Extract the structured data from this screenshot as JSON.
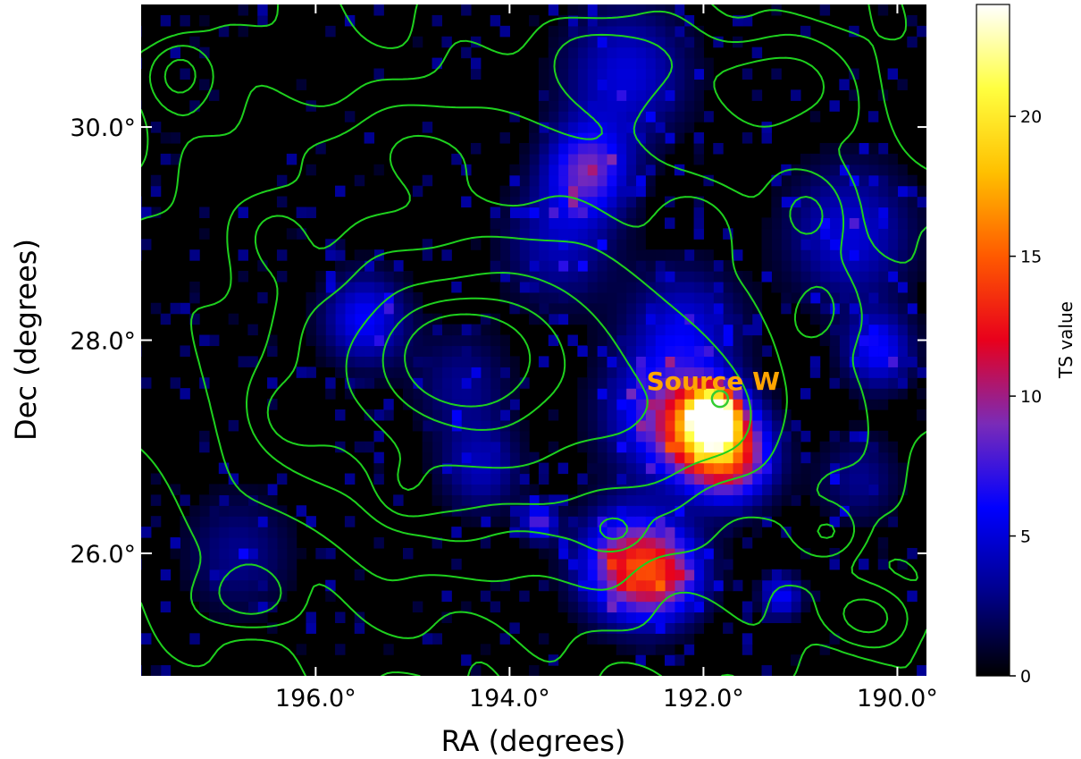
{
  "chart_data": {
    "type": "heatmap",
    "xlabel": "RA (degrees)",
    "ylabel": "Dec (degrees)",
    "xlim": [
      197.8,
      189.7
    ],
    "ylim": [
      24.85,
      31.15
    ],
    "x_ticks": [
      {
        "value": 196.0,
        "label": "196.0°"
      },
      {
        "value": 194.0,
        "label": "194.0°"
      },
      {
        "value": 192.0,
        "label": "192.0°"
      },
      {
        "value": 190.0,
        "label": "190.0°"
      }
    ],
    "y_ticks": [
      {
        "value": 30.0,
        "label": "30.0°"
      },
      {
        "value": 28.0,
        "label": "28.0°"
      },
      {
        "value": 26.0,
        "label": "26.0°"
      }
    ],
    "colorbar": {
      "label": "TS value",
      "range": [
        0,
        24
      ],
      "ticks": [
        {
          "value": 0,
          "label": "0"
        },
        {
          "value": 5,
          "label": "5"
        },
        {
          "value": 10,
          "label": "10"
        },
        {
          "value": 15,
          "label": "15"
        },
        {
          "value": 20,
          "label": "20"
        }
      ],
      "colormap": [
        "#000000",
        "#00008c",
        "#0000ff",
        "#7a2bb8",
        "#e8001c",
        "#ff5a00",
        "#ffc000",
        "#ffff40",
        "#ffffff"
      ]
    },
    "annotation": {
      "text": "Source W",
      "ra": 191.9,
      "dec": 27.6,
      "color": "#ffa500"
    },
    "marker": {
      "ra": 191.83,
      "dec": 27.45,
      "color": "#32cd32"
    },
    "contour_color": "#1ed01e",
    "ts_blobs": [
      {
        "ra": 191.9,
        "dec": 27.3,
        "peak": 24,
        "sigma": 0.15
      },
      {
        "ra": 192.0,
        "dec": 27.15,
        "peak": 14,
        "sigma": 0.3
      },
      {
        "ra": 191.7,
        "dec": 26.9,
        "peak": 10,
        "sigma": 0.3
      },
      {
        "ra": 192.5,
        "dec": 27.3,
        "peak": 6,
        "sigma": 0.4
      },
      {
        "ra": 192.8,
        "dec": 25.9,
        "peak": 10,
        "sigma": 0.35
      },
      {
        "ra": 192.4,
        "dec": 25.8,
        "peak": 8,
        "sigma": 0.3
      },
      {
        "ra": 193.2,
        "dec": 29.6,
        "peak": 8,
        "sigma": 0.3
      },
      {
        "ra": 192.8,
        "dec": 30.5,
        "peak": 5,
        "sigma": 0.45
      },
      {
        "ra": 195.5,
        "dec": 28.2,
        "peak": 6,
        "sigma": 0.3
      },
      {
        "ra": 193.5,
        "dec": 28.9,
        "peak": 4,
        "sigma": 0.4
      },
      {
        "ra": 192.2,
        "dec": 28.1,
        "peak": 5,
        "sigma": 0.4
      },
      {
        "ra": 190.5,
        "dec": 29.0,
        "peak": 5,
        "sigma": 0.45
      },
      {
        "ra": 190.2,
        "dec": 27.9,
        "peak": 6,
        "sigma": 0.25
      },
      {
        "ra": 194.3,
        "dec": 26.8,
        "peak": 4,
        "sigma": 0.3
      },
      {
        "ra": 196.8,
        "dec": 26.0,
        "peak": 3,
        "sigma": 0.4
      },
      {
        "ra": 191.2,
        "dec": 25.6,
        "peak": 6,
        "sigma": 0.15
      },
      {
        "ra": 190.4,
        "dec": 26.7,
        "peak": 3,
        "sigma": 0.3
      },
      {
        "ra": 194.5,
        "dec": 27.6,
        "peak": 3,
        "sigma": 0.35
      },
      {
        "ra": 193.7,
        "dec": 26.3,
        "peak": 8,
        "sigma": 0.12
      }
    ],
    "density_sources": [
      {
        "ra": 194.5,
        "dec": 27.85,
        "amp": 5.0,
        "sx": 0.45,
        "sy": 0.3
      },
      {
        "ra": 194.3,
        "dec": 27.7,
        "amp": 2.6,
        "sx": 1.2,
        "sy": 0.8
      },
      {
        "ra": 193.6,
        "dec": 27.5,
        "amp": 1.3,
        "sx": 2.2,
        "sy": 1.2
      },
      {
        "ra": 194.0,
        "dec": 28.2,
        "amp": 0.8,
        "sx": 3.0,
        "sy": 1.8
      },
      {
        "ra": 191.9,
        "dec": 27.25,
        "amp": 0.8,
        "sx": 0.6,
        "sy": 0.4
      },
      {
        "ra": 197.4,
        "dec": 30.5,
        "amp": 1.0,
        "sx": 0.2,
        "sy": 0.2
      },
      {
        "ra": 193.0,
        "dec": 30.6,
        "amp": 1.0,
        "sx": 0.5,
        "sy": 0.28
      },
      {
        "ra": 191.3,
        "dec": 30.4,
        "amp": 1.0,
        "sx": 0.45,
        "sy": 0.3
      },
      {
        "ra": 192.1,
        "dec": 29.1,
        "amp": 0.9,
        "sx": 0.3,
        "sy": 0.25
      },
      {
        "ra": 196.4,
        "dec": 29.0,
        "amp": 0.9,
        "sx": 0.25,
        "sy": 0.25
      },
      {
        "ra": 190.9,
        "dec": 29.2,
        "amp": 0.9,
        "sx": 0.25,
        "sy": 0.25
      },
      {
        "ra": 190.8,
        "dec": 28.3,
        "amp": 0.9,
        "sx": 0.2,
        "sy": 0.25
      },
      {
        "ra": 195.1,
        "dec": 26.6,
        "amp": 0.9,
        "sx": 0.2,
        "sy": 0.2
      },
      {
        "ra": 196.2,
        "dec": 27.3,
        "amp": 0.9,
        "sx": 0.25,
        "sy": 0.2
      },
      {
        "ra": 196.7,
        "dec": 25.6,
        "amp": 0.9,
        "sx": 0.3,
        "sy": 0.2
      },
      {
        "ra": 190.7,
        "dec": 26.2,
        "amp": 0.9,
        "sx": 0.2,
        "sy": 0.15
      },
      {
        "ra": 190.3,
        "dec": 25.4,
        "amp": 0.9,
        "sx": 0.3,
        "sy": 0.2
      },
      {
        "ra": 192.9,
        "dec": 26.2,
        "amp": 0.9,
        "sx": 0.18,
        "sy": 0.12
      },
      {
        "ra": 194.9,
        "dec": 29.8,
        "amp": 0.7,
        "sx": 0.9,
        "sy": 0.3
      }
    ],
    "contour_levels": [
      0.35,
      0.6,
      1.0,
      1.6,
      2.2,
      3.2,
      4.5,
      6.0
    ]
  }
}
